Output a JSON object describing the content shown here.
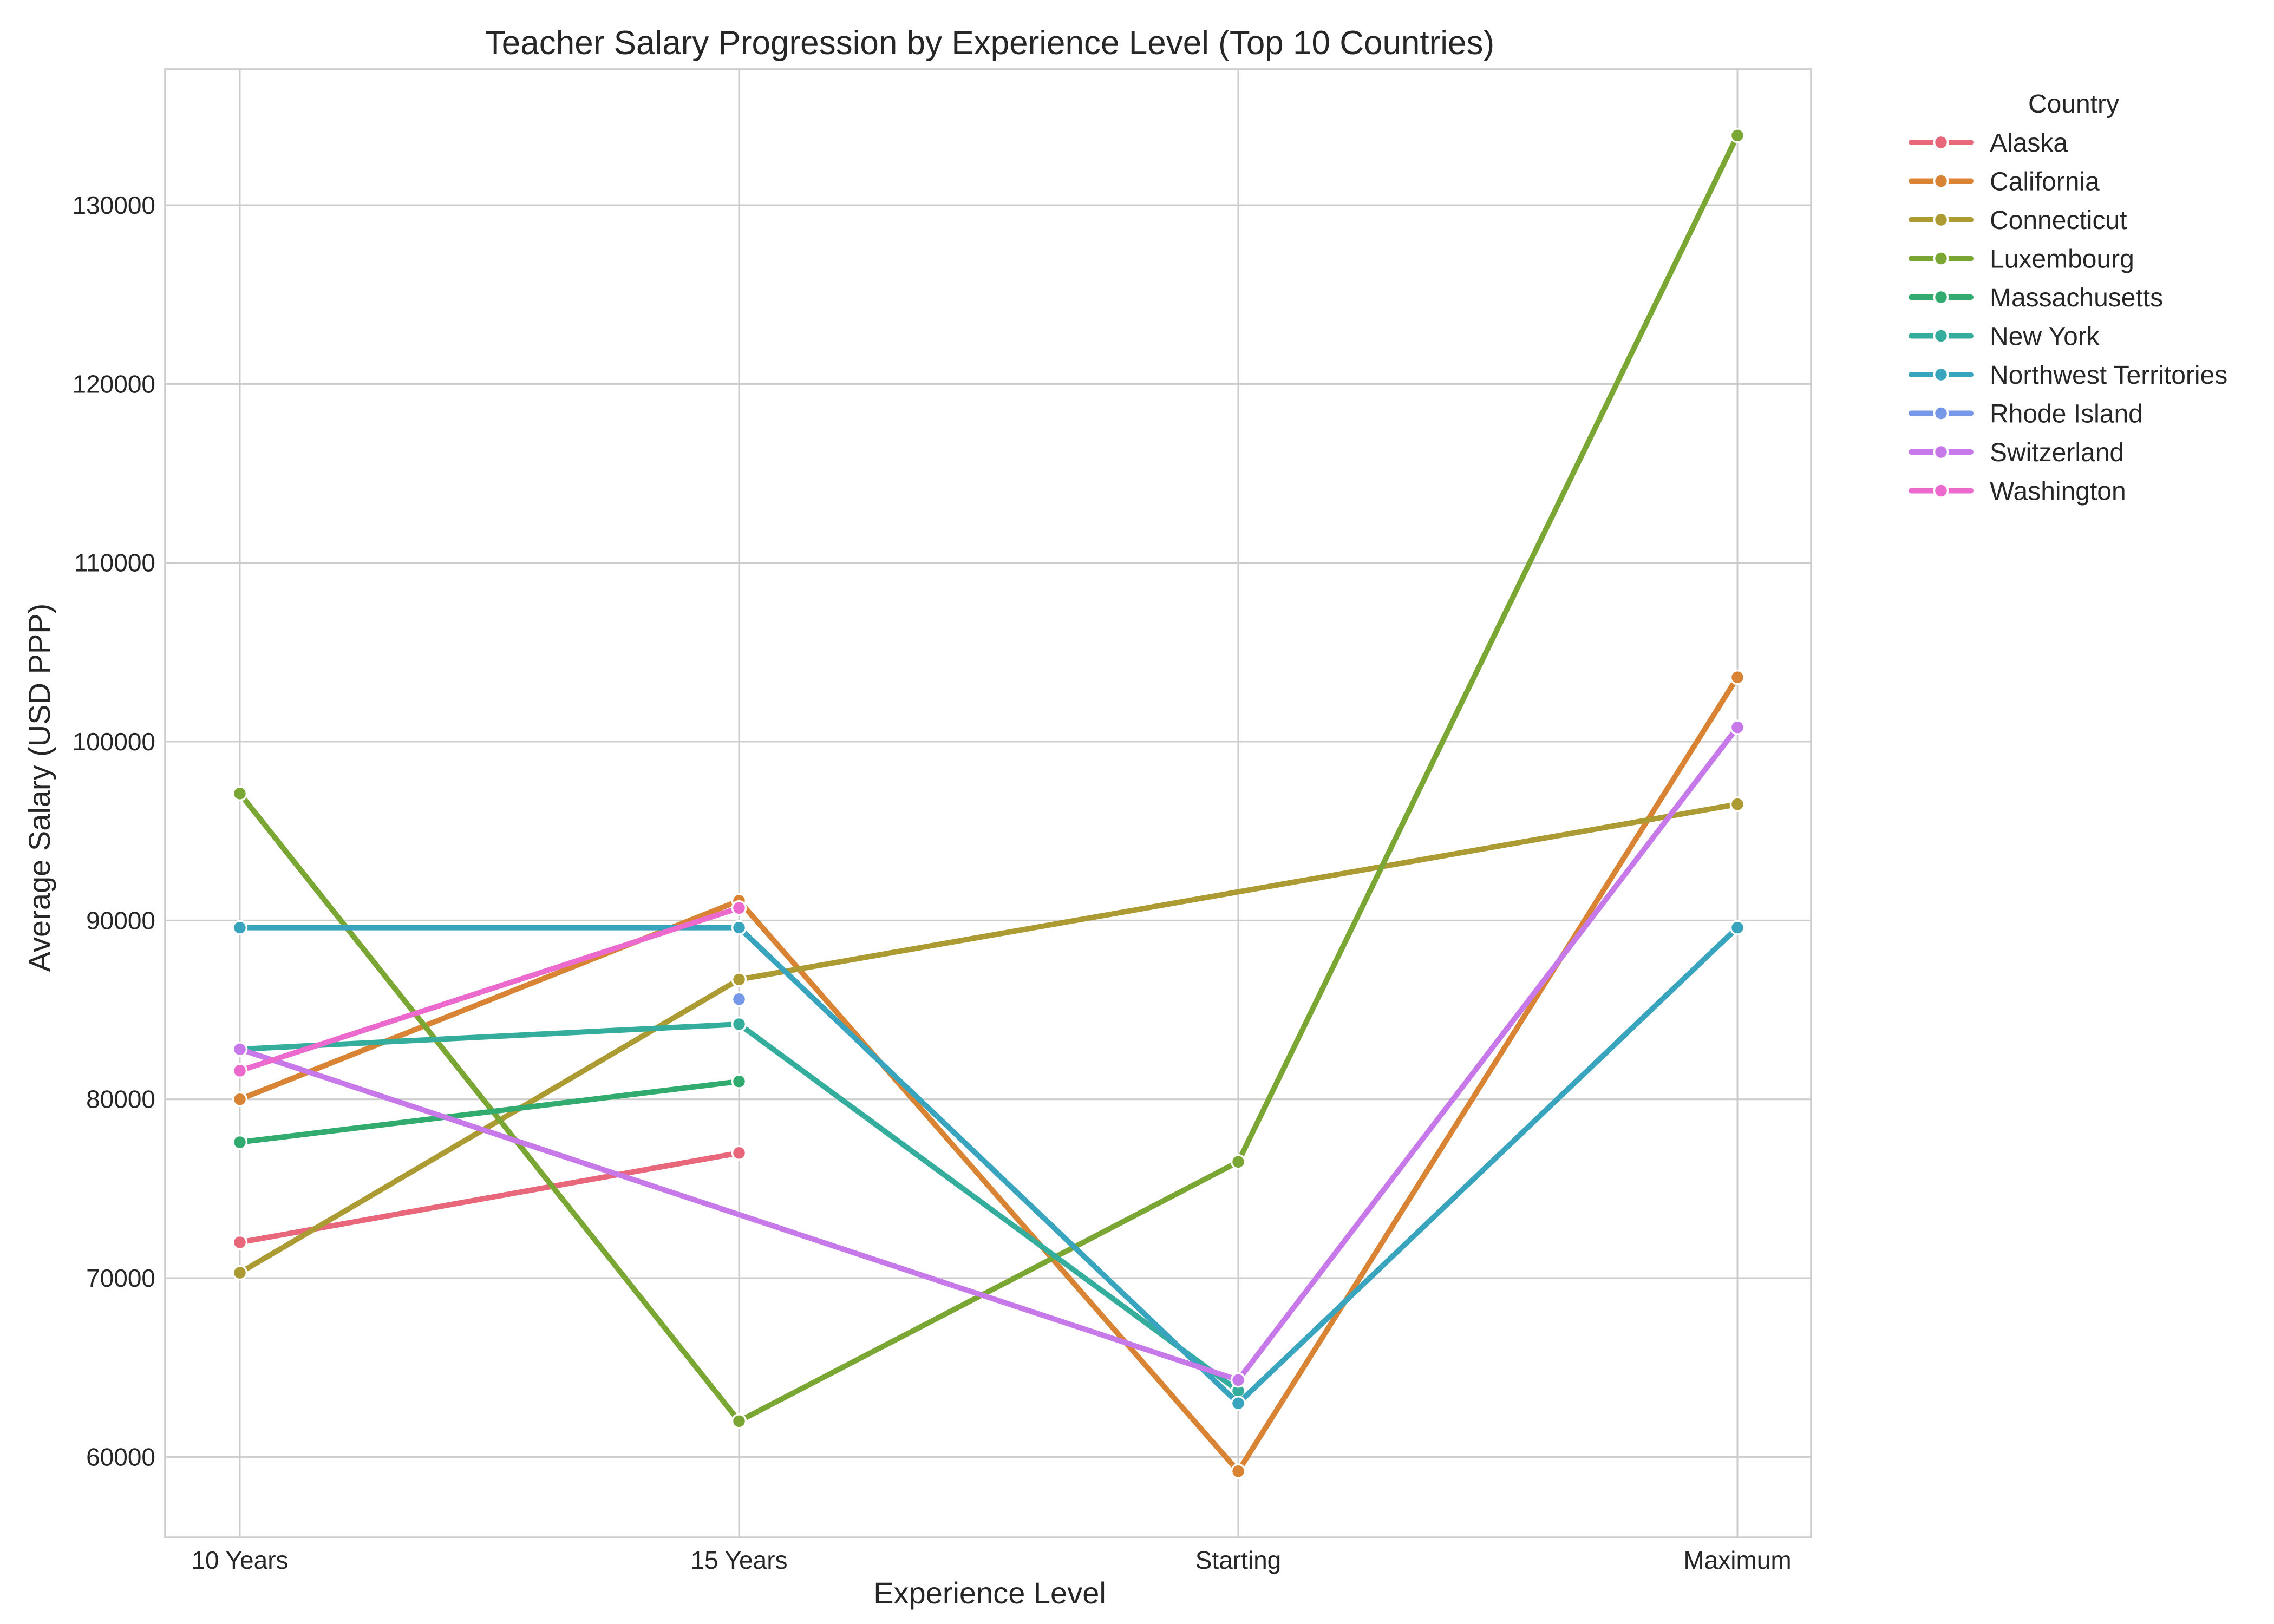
{
  "chart_data": {
    "type": "line",
    "title": "Teacher Salary Progression by Experience Level (Top 10 Countries)",
    "xlabel": "Experience Level",
    "ylabel": "Average Salary (USD PPP)",
    "categories": [
      "10 Years",
      "15 Years",
      "Starting",
      "Maximum"
    ],
    "ylim": [
      55500,
      137600
    ],
    "yticks": [
      60000,
      70000,
      80000,
      90000,
      100000,
      110000,
      120000,
      130000
    ],
    "grid": true,
    "legend": {
      "title": "Country",
      "placement": "outside-right"
    },
    "series": [
      {
        "name": "Alaska",
        "color": "#e8677b",
        "values": [
          72000,
          77000,
          null,
          null
        ]
      },
      {
        "name": "California",
        "color": "#d98435",
        "values": [
          80000,
          91100,
          59200,
          103600
        ]
      },
      {
        "name": "Connecticut",
        "color": "#ac9a32",
        "values": [
          70300,
          86700,
          null,
          96500
        ]
      },
      {
        "name": "Luxembourg",
        "color": "#7aa633",
        "values": [
          97100,
          62000,
          76500,
          133900
        ]
      },
      {
        "name": "Massachusetts",
        "color": "#32ab6f",
        "values": [
          77600,
          81000,
          null,
          null
        ]
      },
      {
        "name": "New York",
        "color": "#35ad9d",
        "values": [
          82800,
          84200,
          63700,
          null
        ]
      },
      {
        "name": "Northwest Territories",
        "color": "#38a4bd",
        "values": [
          89600,
          89600,
          63000,
          89600
        ]
      },
      {
        "name": "Rhode Island",
        "color": "#7797e8",
        "values": [
          null,
          85600,
          null,
          null
        ]
      },
      {
        "name": "Switzerland",
        "color": "#c779ea",
        "values": [
          82800,
          null,
          64300,
          100800
        ]
      },
      {
        "name": "Washington",
        "color": "#ec6acd",
        "values": [
          81600,
          90700,
          null,
          null
        ]
      }
    ]
  }
}
